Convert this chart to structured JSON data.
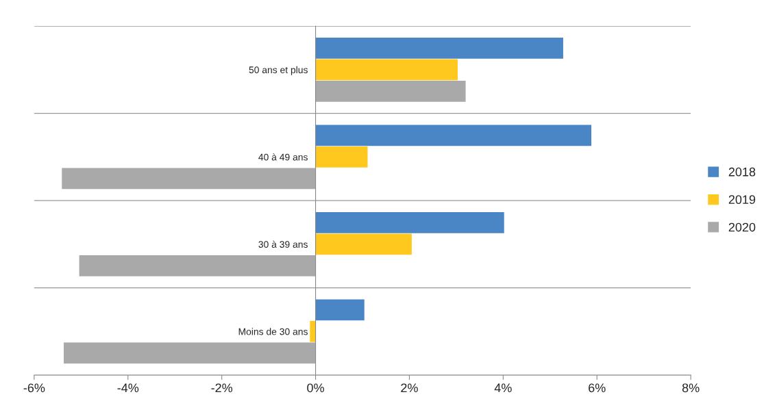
{
  "chart_data": {
    "type": "bar",
    "orientation": "horizontal",
    "categories": [
      "50 ans et plus",
      "40 à 49 ans",
      "30 à 39 ans",
      "Moins de 30 ans"
    ],
    "series": [
      {
        "name": "2018",
        "color": "#4a86c5",
        "values": [
          5.28,
          5.88,
          4.02,
          1.04
        ]
      },
      {
        "name": "2019",
        "color": "#ffc81e",
        "values": [
          3.03,
          1.11,
          2.05,
          -0.12
        ]
      },
      {
        "name": "2020",
        "color": "#a9a9a9",
        "values": [
          3.2,
          -5.41,
          -5.04,
          -5.37
        ]
      }
    ],
    "xlim": [
      -6,
      8
    ],
    "xticks": [
      {
        "value": -6,
        "label": "-6%"
      },
      {
        "value": -4,
        "label": "-4%"
      },
      {
        "value": -2,
        "label": "-2%"
      },
      {
        "value": 0,
        "label": "0%"
      },
      {
        "value": 2,
        "label": "2%"
      },
      {
        "value": 4,
        "label": "4%"
      },
      {
        "value": 6,
        "label": "6%"
      },
      {
        "value": 8,
        "label": "8%"
      }
    ],
    "grid": "y",
    "legend": "right"
  }
}
